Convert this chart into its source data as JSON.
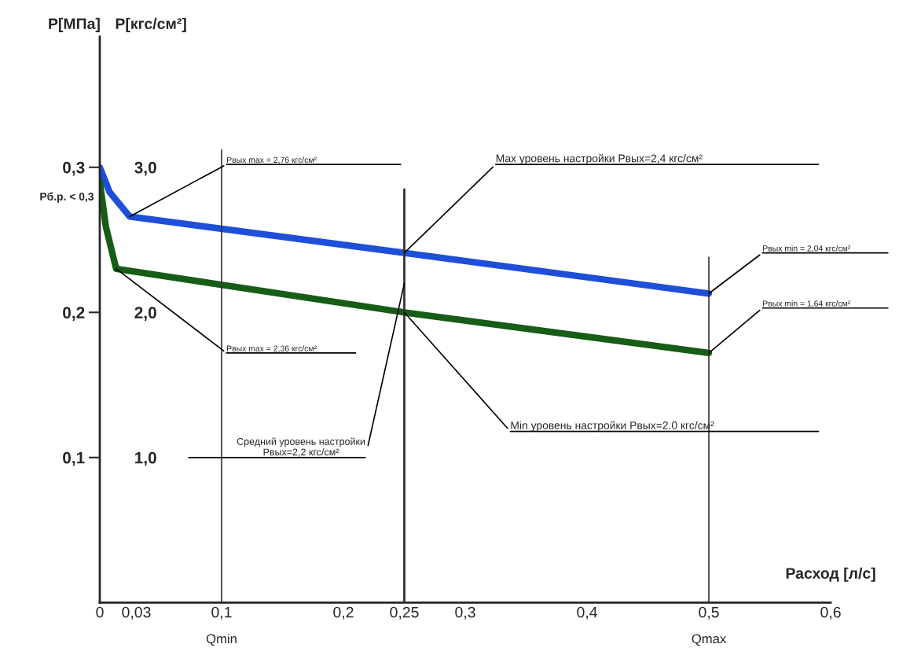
{
  "chart_data": {
    "type": "line",
    "xlabel": "Расход [л/с]",
    "ylabel": "P[МПа]",
    "y2label": "P[кгс/см²]",
    "series": [
      {
        "color": "#1e4fd8",
        "x": [
          0,
          0.008,
          0.0245,
          0.25,
          0.5
        ],
        "values": [
          0.3,
          0.283,
          0.266,
          0.241,
          0.213
        ]
      },
      {
        "color": "#175c17",
        "x": [
          0,
          0.005,
          0.0135,
          0.25,
          0.5
        ],
        "values": [
          0.29,
          0.259,
          0.23,
          0.2,
          0.172
        ]
      }
    ],
    "xlim": [
      0,
      0.6
    ],
    "xticks": [
      0,
      {
        "value": 0.03,
        "label": "0,03"
      },
      {
        "value": 0.1,
        "label": "0,1"
      },
      {
        "value": 0.2,
        "label": "0,2"
      },
      {
        "value": 0.25,
        "label": "0,25"
      },
      {
        "value": 0.3,
        "label": "0,3"
      },
      {
        "value": 0.4,
        "label": "0,4"
      },
      {
        "value": 0.5,
        "label": "0,5"
      },
      {
        "value": 0.6,
        "label": "0,6"
      }
    ],
    "ylim": [
      0,
      0.39
    ],
    "yticks": [
      {
        "value": 0.1,
        "label": "0,1"
      },
      {
        "value": 0.2,
        "label": "0,2"
      },
      {
        "value": 0.3,
        "label": "0,3"
      }
    ],
    "y2lim": [
      0,
      3.9
    ],
    "y2ticks": [
      {
        "value": 1,
        "label": "1,0"
      },
      {
        "value": 2,
        "label": "2,0"
      },
      {
        "value": 3,
        "label": "3,0"
      }
    ],
    "ref_lines": [
      {
        "axis": "x",
        "value": 0.1
      },
      {
        "axis": "x",
        "value": 0.25
      },
      {
        "axis": "x",
        "value": 0.5
      }
    ],
    "annotations": [
      {
        "text": "Рвых max = 2,76 кгс/см²",
        "x": 0.0245,
        "y": 0.266
      },
      {
        "text": "Max уровень настройки Рвых=2,4 кгс/см²",
        "x": 0.25,
        "y": 0.241
      },
      {
        "text": "Рвых min = 2,04 кгс/см²",
        "x": 0.5,
        "y": 0.213
      },
      {
        "text": "Рвых min = 1,64 кгс/см²",
        "x": 0.5,
        "y": 0.172
      },
      {
        "text": "Рвых max = 2,36 кгс/см²",
        "x": 0.0135,
        "y": 0.23
      },
      {
        "text": "Средний уровень настройки\nРвых=2,2 кгс/см²",
        "x": 0.25,
        "y": 0.22
      },
      {
        "text": "Min уровень настройки Рвых=2.0 кгс/см²",
        "x": 0.25,
        "y": 0.2
      },
      "Рб.р. < 0,3",
      "Qmin",
      "Qmax"
    ],
    "grid": false,
    "legend": false,
    "line_style": "solid",
    "marker": "none"
  }
}
